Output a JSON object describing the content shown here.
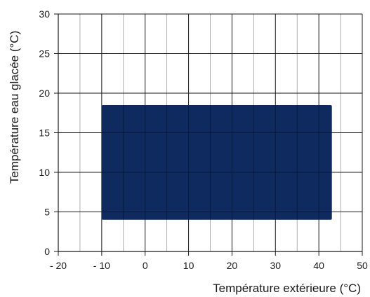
{
  "chart_data": {
    "type": "area",
    "xlabel": "Température extérieure (°C)",
    "ylabel": "Température eau glacée (°C)",
    "xlim": [
      -20,
      50
    ],
    "ylim": [
      0,
      30
    ],
    "x_ticks": [
      "- 20",
      "- 10",
      "0",
      "10",
      "20",
      "30",
      "40",
      "50"
    ],
    "x_tick_values": [
      -20,
      -10,
      0,
      10,
      20,
      30,
      40,
      50
    ],
    "y_ticks": [
      "0",
      "5",
      "10",
      "15",
      "20",
      "25",
      "30"
    ],
    "y_tick_values": [
      0,
      5,
      10,
      15,
      20,
      25,
      30
    ],
    "x_minor_step": 5,
    "y_minor_step": 5,
    "grid": true,
    "operating_range": {
      "x": [
        -10,
        43
      ],
      "y": [
        4,
        18.5
      ]
    },
    "colors": {
      "fill": "#0f2a5e",
      "grid_major": "#1a1a1a",
      "grid_minor": "#9a9a9a",
      "axis": "#1a1a1a"
    }
  }
}
